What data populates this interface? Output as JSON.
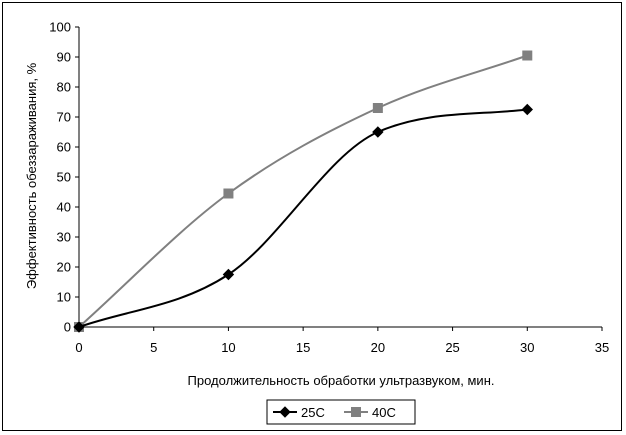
{
  "chart_data": {
    "type": "line",
    "title": "",
    "xlabel": "Продолжительность обработки ультразвуком, мин.",
    "ylabel": "Эффективность обеззараживания, %",
    "xlim": [
      0,
      35
    ],
    "ylim": [
      0,
      100
    ],
    "xticks": [
      "0",
      "5",
      "10",
      "15",
      "20",
      "25",
      "30",
      "35"
    ],
    "yticks": [
      "0",
      "10",
      "20",
      "30",
      "40",
      "50",
      "60",
      "70",
      "80",
      "90",
      "100"
    ],
    "grid": false,
    "legend_position": "bottom",
    "series": [
      {
        "name": "25C",
        "marker": "diamond",
        "color": "#000000",
        "x": [
          0,
          10,
          20,
          30
        ],
        "y": [
          0,
          17.5,
          65,
          72.5
        ]
      },
      {
        "name": "40C",
        "marker": "square",
        "color": "#808080",
        "x": [
          0,
          10,
          20,
          30
        ],
        "y": [
          0,
          44.5,
          73,
          90.5
        ]
      }
    ]
  }
}
